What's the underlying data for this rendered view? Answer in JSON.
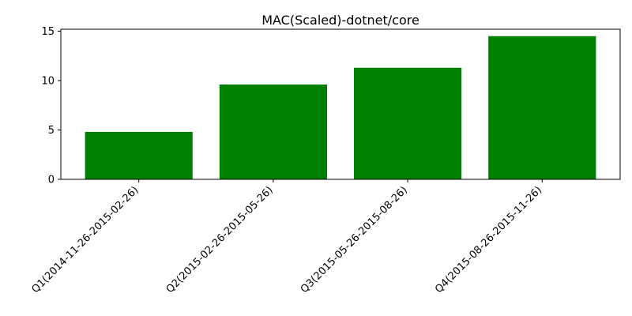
{
  "chart_data": {
    "type": "bar",
    "title": "MAC(Scaled)-dotnet/core",
    "xlabel": "",
    "ylabel": "",
    "categories": [
      "Q1(2014-11-26-2015-02-26)",
      "Q2(2015-02-26-2015-05-26)",
      "Q3(2015-05-26-2015-08-26)",
      "Q4(2015-08-26-2015-11-26)"
    ],
    "values": [
      4.8,
      9.6,
      11.3,
      14.5
    ],
    "ylim": [
      0,
      15.2
    ],
    "yticks": [
      0,
      5,
      10,
      15
    ],
    "bar_color": "#008000",
    "grid": false,
    "legend": "none"
  }
}
